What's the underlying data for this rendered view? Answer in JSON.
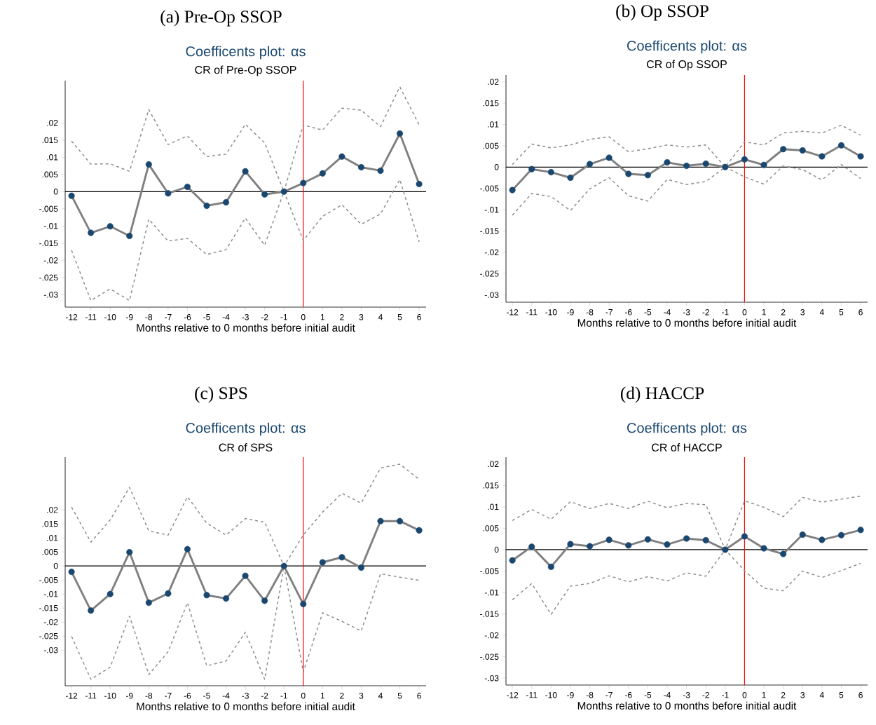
{
  "chart_data": [
    {
      "type": "line",
      "title": "Coefficents plot: αs",
      "subtitle": "CR of Pre-Op SSOP",
      "xlabel": "Months relative to 0 months before initial audit",
      "annotations": [
        "(a) Pre-Op SSOP"
      ],
      "x": [
        -12,
        -11,
        -10,
        -9,
        -8,
        -7,
        -6,
        -5,
        -4,
        -3,
        -2,
        -1,
        0,
        1,
        2,
        3,
        4,
        5,
        6
      ],
      "xlim": [
        -12.33,
        6.36
      ],
      "xticks": [
        -12,
        -11,
        -10,
        -9,
        -8,
        -7,
        -6,
        -5,
        -4,
        -3,
        -2,
        -1,
        0,
        1,
        2,
        3,
        4,
        5,
        6
      ],
      "ylim": [
        -0.0336,
        0.0323
      ],
      "yticks": [
        {
          "value": 0.02,
          "label": ".02"
        },
        {
          "value": 0.015,
          "label": ".015"
        },
        {
          "value": 0.01,
          "label": ".01"
        },
        {
          "value": 0.005,
          "label": ".005"
        },
        0,
        {
          "value": -0.005,
          "label": "-.005"
        },
        {
          "value": -0.01,
          "label": "-.01"
        },
        {
          "value": -0.015,
          "label": "-.015"
        },
        {
          "value": -0.02,
          "label": "-.02"
        },
        {
          "value": -0.025,
          "label": "-.025"
        },
        {
          "value": -0.03,
          "label": "-.03"
        }
      ],
      "ref_lines": [
        {
          "axis": "y",
          "value": 0,
          "color": "#000000"
        },
        {
          "axis": "x",
          "value": 0,
          "color": "#ff0000"
        }
      ],
      "series": [
        {
          "color": "#8c8c8c",
          "line_style": "dashed",
          "marker": "none",
          "values": [
            0.0147,
            0.008,
            0.0081,
            0.0059,
            0.0239,
            0.0137,
            0.0162,
            0.0102,
            0.0109,
            0.0196,
            0.0142,
            0,
            0.0194,
            0.0179,
            0.0243,
            0.0237,
            0.0189,
            0.0305,
            0.0194
          ]
        },
        {
          "color": "#8c8c8c",
          "line_style": "dashed",
          "marker": "none",
          "values": [
            -0.0171,
            -0.0317,
            -0.0283,
            -0.0317,
            -0.008,
            -0.0144,
            -0.0136,
            -0.0183,
            -0.0169,
            -0.0077,
            -0.0156,
            0,
            -0.0142,
            -0.0072,
            -0.0038,
            -0.0095,
            -0.0065,
            0.0035,
            -0.0146
          ]
        },
        {
          "color": "#808080",
          "line_style": "solid",
          "marker": "circle",
          "colors": [
            "#1a476f",
            "#1a476f",
            "#1a476f",
            "#1a476f",
            "#1a476f",
            "#1a476f",
            "#1a476f",
            "#1a476f",
            "#1a476f",
            "#1a476f",
            "#1a476f",
            "#1a476f",
            "#1a476f",
            "#1a476f",
            "#1a476f",
            "#1a476f",
            "#1a476f",
            "#1a476f",
            "#1a476f"
          ],
          "values": [
            -0.0012,
            -0.012,
            -0.0101,
            -0.0129,
            0.0079,
            -0.0005,
            0.0014,
            -0.0041,
            -0.0031,
            0.0059,
            -0.0008,
            0,
            0.0025,
            0.0053,
            0.0102,
            0.0071,
            0.0061,
            0.0169,
            0.0022
          ]
        }
      ]
    },
    {
      "type": "line",
      "title": "Coefficents plot: αs",
      "subtitle": "CR of Op SSOP",
      "xlabel": "Months relative to 0 months before initial audit",
      "annotations": [
        "(b) Op SSOP"
      ],
      "x": [
        -12,
        -11,
        -10,
        -9,
        -8,
        -7,
        -6,
        -5,
        -4,
        -3,
        -2,
        -1,
        0,
        1,
        2,
        3,
        4,
        5,
        6
      ],
      "xlim": [
        -12.33,
        6.36
      ],
      "xticks": [
        -12,
        -11,
        -10,
        -9,
        -8,
        -7,
        -6,
        -5,
        -4,
        -3,
        -2,
        -1,
        0,
        1,
        2,
        3,
        4,
        5,
        6
      ],
      "ylim": [
        -0.0317,
        0.0216
      ],
      "yticks": [
        {
          "value": 0.02,
          "label": ".02"
        },
        {
          "value": 0.015,
          "label": ".015"
        },
        {
          "value": 0.01,
          "label": ".01"
        },
        {
          "value": 0.005,
          "label": ".005"
        },
        0,
        {
          "value": -0.005,
          "label": "-.005"
        },
        {
          "value": -0.01,
          "label": "-.01"
        },
        {
          "value": -0.015,
          "label": "-.015"
        },
        {
          "value": -0.02,
          "label": "-.02"
        },
        {
          "value": -0.025,
          "label": "-.025"
        },
        {
          "value": -0.03,
          "label": "-.03"
        }
      ],
      "ref_lines": [
        {
          "axis": "y",
          "value": 0,
          "color": "#000000"
        },
        {
          "axis": "x",
          "value": 0,
          "color": "#ff0000"
        }
      ],
      "series": [
        {
          "color": "#8c8c8c",
          "line_style": "dashed",
          "marker": "none",
          "values": [
            0.0006,
            0.0054,
            0.0045,
            0.0052,
            0.0065,
            0.0071,
            0.0036,
            0.0043,
            0.0052,
            0.0047,
            0.0052,
            0,
            0.0059,
            0.0052,
            0.008,
            0.0084,
            0.008,
            0.0098,
            0.0075
          ]
        },
        {
          "color": "#8c8c8c",
          "line_style": "dashed",
          "marker": "none",
          "values": [
            -0.0113,
            -0.0062,
            -0.0069,
            -0.0102,
            -0.0051,
            -0.0025,
            -0.0067,
            -0.008,
            -0.0029,
            -0.0041,
            -0.0034,
            0,
            -0.0023,
            -0.004,
            0.0003,
            -0.0006,
            -0.003,
            0.0006,
            -0.0027
          ]
        },
        {
          "color": "#808080",
          "line_style": "solid",
          "marker": "circle",
          "colors": [
            "#1a476f",
            "#1a476f",
            "#1a476f",
            "#1a476f",
            "#1a476f",
            "#1a476f",
            "#1a476f",
            "#1a476f",
            "#1a476f",
            "#1a476f",
            "#1a476f",
            "#1a476f",
            "#1a476f",
            "#1a476f",
            "#1a476f",
            "#1a476f",
            "#1a476f",
            "#1a476f",
            "#1a476f"
          ],
          "values": [
            -0.0054,
            -0.0005,
            -0.0012,
            -0.0025,
            0.0007,
            0.0022,
            -0.0016,
            -0.0019,
            0.0011,
            0.0003,
            0.0008,
            0,
            0.0018,
            0.0005,
            0.0042,
            0.0039,
            0.0025,
            0.0051,
            0.0025
          ]
        }
      ]
    },
    {
      "type": "line",
      "title": "Coefficents plot: αs",
      "subtitle": "CR of SPS",
      "xlabel": "Months relative to 0 months before initial audit",
      "annotations": [
        "(c) SPS"
      ],
      "x": [
        -12,
        -11,
        -10,
        -9,
        -8,
        -7,
        -6,
        -5,
        -4,
        -3,
        -2,
        -1,
        0,
        1,
        2,
        3,
        4,
        5,
        6
      ],
      "xlim": [
        -12.33,
        6.36
      ],
      "xticks": [
        -12,
        -11,
        -10,
        -9,
        -8,
        -7,
        -6,
        -5,
        -4,
        -3,
        -2,
        -1,
        0,
        1,
        2,
        3,
        4,
        5,
        6
      ],
      "ylim": [
        -0.0427,
        0.0388
      ],
      "yticks": [
        {
          "value": 0.02,
          "label": ".02"
        },
        {
          "value": 0.015,
          "label": ".015"
        },
        {
          "value": 0.01,
          "label": ".01"
        },
        {
          "value": 0.005,
          "label": ".005"
        },
        0,
        {
          "value": -0.005,
          "label": "-.005"
        },
        {
          "value": -0.01,
          "label": "-.01"
        },
        {
          "value": -0.015,
          "label": "-.015"
        },
        {
          "value": -0.02,
          "label": "-.02"
        },
        {
          "value": -0.025,
          "label": "-.025"
        },
        {
          "value": -0.03,
          "label": "-.03"
        }
      ],
      "ref_lines": [
        {
          "axis": "y",
          "value": 0,
          "color": "#000000"
        },
        {
          "axis": "x",
          "value": 0,
          "color": "#ff0000"
        }
      ],
      "series": [
        {
          "color": "#8c8c8c",
          "line_style": "dashed",
          "marker": "none",
          "values": [
            0.021,
            0.0085,
            0.0164,
            0.028,
            0.0125,
            0.011,
            0.0247,
            0.0153,
            0.011,
            0.0169,
            0.0156,
            0,
            0.011,
            0.0192,
            0.0259,
            0.0224,
            0.0349,
            0.0363,
            0.0309
          ]
        },
        {
          "color": "#8c8c8c",
          "line_style": "dashed",
          "marker": "none",
          "values": [
            -0.0251,
            -0.0404,
            -0.0361,
            -0.0179,
            -0.0387,
            -0.0306,
            -0.0131,
            -0.0356,
            -0.0339,
            -0.0236,
            -0.0404,
            0,
            -0.0378,
            -0.0167,
            -0.0197,
            -0.0232,
            -0.0028,
            -0.004,
            -0.0051
          ]
        },
        {
          "color": "#808080",
          "line_style": "solid",
          "marker": "circle",
          "colors": [
            "#1a476f",
            "#1a476f",
            "#1a476f",
            "#1a476f",
            "#1a476f",
            "#1a476f",
            "#1a476f",
            "#1a476f",
            "#1a476f",
            "#1a476f",
            "#1a476f",
            "#1a476f",
            "#1a476f",
            "#1a476f",
            "#1a476f",
            "#1a476f",
            "#1a476f",
            "#1a476f",
            "#1a476f"
          ],
          "values": [
            -0.0021,
            -0.0159,
            -0.01,
            0.0049,
            -0.0131,
            -0.0098,
            0.006,
            -0.0104,
            -0.0116,
            -0.0035,
            -0.0124,
            0,
            -0.0136,
            0.0013,
            0.0031,
            -0.0006,
            0.016,
            0.016,
            0.0127
          ]
        }
      ]
    },
    {
      "type": "line",
      "title": "Coefficents plot: αs",
      "subtitle": "CR of HACCP",
      "xlabel": "Months relative to 0 months before initial audit",
      "annotations": [
        "(d) HACCP"
      ],
      "x": [
        -12,
        -11,
        -10,
        -9,
        -8,
        -7,
        -6,
        -5,
        -4,
        -3,
        -2,
        -1,
        0,
        1,
        2,
        3,
        4,
        5,
        6
      ],
      "xlim": [
        -12.33,
        6.36
      ],
      "xticks": [
        -12,
        -11,
        -10,
        -9,
        -8,
        -7,
        -6,
        -5,
        -4,
        -3,
        -2,
        -1,
        0,
        1,
        2,
        3,
        4,
        5,
        6
      ],
      "ylim": [
        -0.0316,
        0.0216
      ],
      "yticks": [
        {
          "value": 0.02,
          "label": ".02"
        },
        {
          "value": 0.015,
          "label": ".015"
        },
        {
          "value": 0.01,
          "label": ".01"
        },
        {
          "value": 0.005,
          "label": ".005"
        },
        0,
        {
          "value": -0.005,
          "label": "-.005"
        },
        {
          "value": -0.01,
          "label": "-.01"
        },
        {
          "value": -0.015,
          "label": "-.015"
        },
        {
          "value": -0.02,
          "label": "-.02"
        },
        {
          "value": -0.025,
          "label": "-.025"
        },
        {
          "value": -0.03,
          "label": "-.03"
        }
      ],
      "ref_lines": [
        {
          "axis": "y",
          "value": 0,
          "color": "#000000"
        },
        {
          "axis": "x",
          "value": 0,
          "color": "#ff0000"
        }
      ],
      "series": [
        {
          "color": "#8c8c8c",
          "line_style": "dashed",
          "marker": "none",
          "values": [
            0.0068,
            0.0094,
            0.0071,
            0.0112,
            0.0096,
            0.0108,
            0.0096,
            0.0113,
            0.0098,
            0.0108,
            0.0105,
            0,
            0.0114,
            0.0099,
            0.0077,
            0.0122,
            0.0111,
            0.0118,
            0.0125
          ]
        },
        {
          "color": "#8c8c8c",
          "line_style": "dashed",
          "marker": "none",
          "values": [
            -0.0117,
            -0.0079,
            -0.0151,
            -0.0085,
            -0.0079,
            -0.0061,
            -0.0075,
            -0.0063,
            -0.0073,
            -0.0054,
            -0.0062,
            0,
            -0.0049,
            -0.009,
            -0.0096,
            -0.005,
            -0.0065,
            -0.0049,
            -0.0032
          ]
        },
        {
          "color": "#808080",
          "line_style": "solid",
          "marker": "circle",
          "colors": [
            "#1a476f",
            "#1a476f",
            "#1a476f",
            "#1a476f",
            "#1a476f",
            "#1a476f",
            "#1a476f",
            "#1a476f",
            "#1a476f",
            "#1a476f",
            "#1a476f",
            "#1a476f",
            "#1a476f",
            "#1a476f",
            "#1a476f",
            "#1a476f",
            "#1a476f",
            "#1a476f",
            "#1a476f"
          ],
          "values": [
            -0.0025,
            0.0007,
            -0.004,
            0.0013,
            0.0008,
            0.0023,
            0.001,
            0.0024,
            0.0012,
            0.0026,
            0.0022,
            0,
            0.0031,
            0.0003,
            -0.001,
            0.0035,
            0.0023,
            0.0034,
            0.0046
          ]
        }
      ]
    }
  ]
}
